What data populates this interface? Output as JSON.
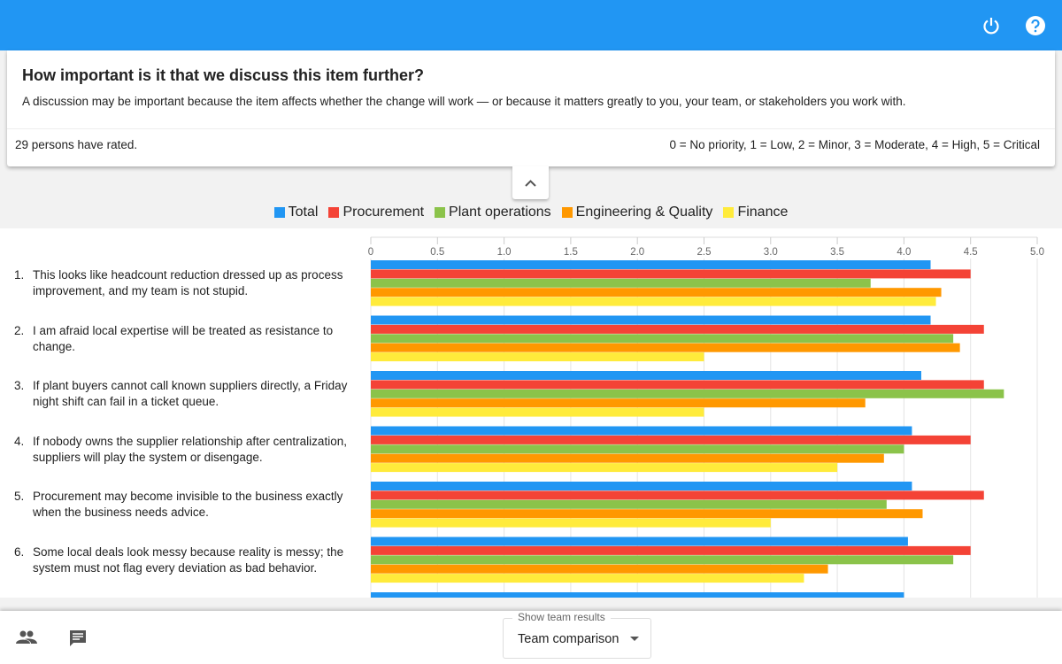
{
  "question": {
    "title": "How important is it that we discuss this item further?",
    "description": "A discussion may be important because the item affects whether the change will work — or because it matters greatly to you, your team, or stakeholders you work with.",
    "rated": "29 persons have rated.",
    "scale": "0 = No priority, 1 = Low, 2 = Minor, 3 = Moderate, 4 = High, 5 = Critical"
  },
  "chart_data": {
    "type": "bar",
    "orientation": "horizontal",
    "category_numbers": [
      "1.",
      "2.",
      "3.",
      "4.",
      "5.",
      "6.",
      null
    ],
    "categories": [
      "This looks like headcount reduction dressed up as process improvement, and my team is not stupid.",
      "I am afraid local expertise will be treated as resistance to change.",
      "If plant buyers cannot call known suppliers directly, a Friday night shift can fail in a ticket queue.",
      "If nobody owns the supplier relationship after centralization, suppliers will play the system or disengage.",
      "Procurement may become invisible to the business exactly when the business needs advice.",
      "Some local deals look messy because reality is messy; the system must not flag every deviation as bad behavior.",
      null
    ],
    "series": [
      {
        "name": "Total",
        "color": "#2196f3",
        "values": [
          4.2,
          4.2,
          4.13,
          4.06,
          4.06,
          4.03,
          4.0
        ]
      },
      {
        "name": "Procurement",
        "color": "#f44336",
        "values": [
          4.5,
          4.6,
          4.6,
          4.5,
          4.6,
          4.5,
          null
        ]
      },
      {
        "name": "Plant operations",
        "color": "#8bc34a",
        "values": [
          3.75,
          4.37,
          4.75,
          4.0,
          3.87,
          4.37,
          null
        ]
      },
      {
        "name": "Engineering & Quality",
        "color": "#ff9800",
        "values": [
          4.28,
          4.42,
          3.71,
          3.85,
          4.14,
          3.43,
          null
        ]
      },
      {
        "name": "Finance",
        "color": "#ffeb3b",
        "values": [
          4.24,
          2.5,
          2.5,
          3.5,
          3.0,
          3.25,
          null
        ]
      }
    ],
    "xlim": [
      0,
      5
    ],
    "xticks": [
      0,
      0.5,
      {
        "value": 1,
        "label": "1.0"
      },
      1.5,
      {
        "value": 2,
        "label": "2.0"
      },
      2.5,
      {
        "value": 3,
        "label": "3.0"
      },
      3.5,
      {
        "value": 4,
        "label": "4.0"
      },
      4.5,
      {
        "value": 5,
        "label": "5.0"
      }
    ],
    "grid": true,
    "legend": "top"
  },
  "footer": {
    "team_results_label": "Show team results",
    "team_results_value": "Team comparison"
  }
}
